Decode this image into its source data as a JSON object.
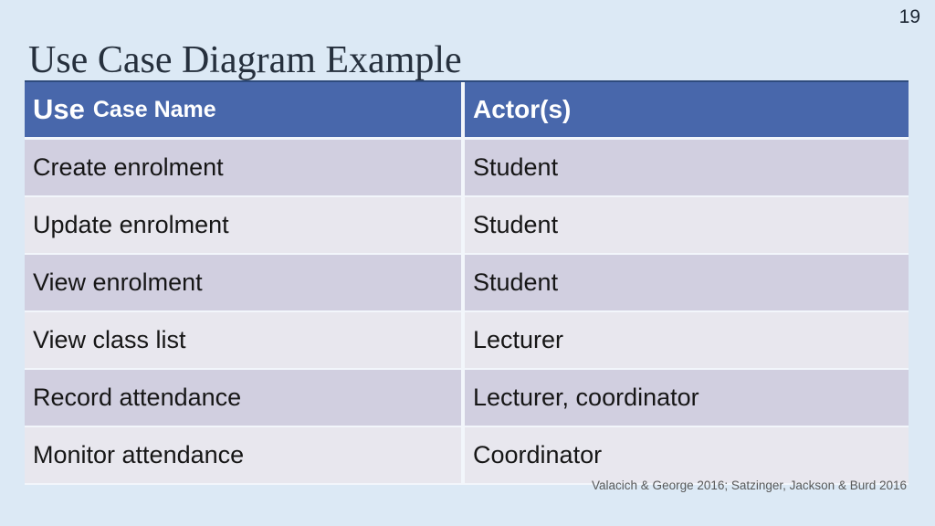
{
  "slide": {
    "page_number": "19",
    "title": "Use Case Diagram Example",
    "background_color": "#dce9f5"
  },
  "table": {
    "header": {
      "col1_emphasis": "Use",
      "col1_rest": "Case Name",
      "col2": "Actor(s)",
      "background_color": "#4867ab",
      "border_top_color": "#2e4b7d",
      "text_color": "#ffffff"
    },
    "row_colors": {
      "odd": "#d1cfe0",
      "even": "#e8e7ee"
    },
    "rows": [
      {
        "use_case": "Create enrolment",
        "actors": "Student"
      },
      {
        "use_case": "Update enrolment",
        "actors": "Student"
      },
      {
        "use_case": "View enrolment",
        "actors": "Student"
      },
      {
        "use_case": "View class list",
        "actors": "Lecturer"
      },
      {
        "use_case": "Record attendance",
        "actors": "Lecturer, coordinator"
      },
      {
        "use_case": "Monitor attendance",
        "actors": "Coordinator"
      }
    ]
  },
  "footer": {
    "citation": "Valacich & George 2016; Satzinger, Jackson & Burd 2016"
  }
}
